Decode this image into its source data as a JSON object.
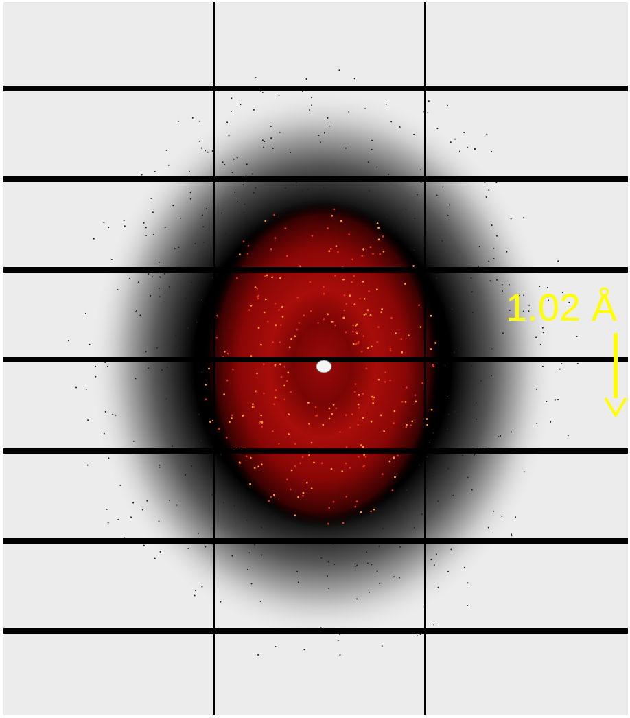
{
  "annotation": {
    "label": "1.02 Å"
  }
}
